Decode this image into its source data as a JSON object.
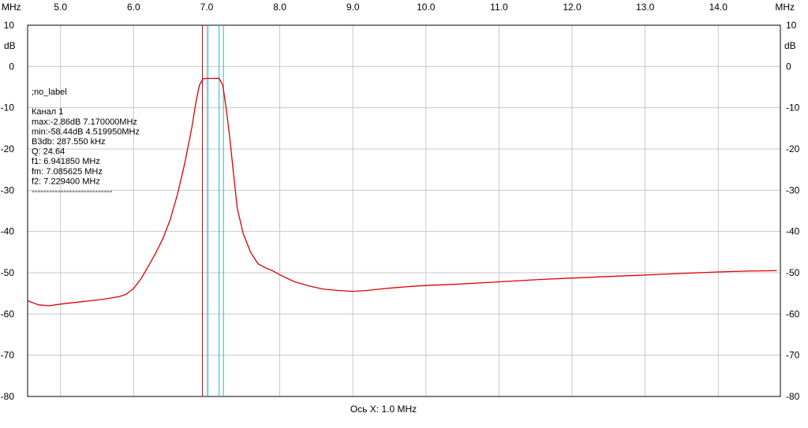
{
  "chart_data": {
    "type": "line",
    "x_unit_label": "MHz",
    "y_unit_label": "dB",
    "x_axis_caption": "Ось X: 1.0 MHz",
    "xlim": [
      4.55,
      14.85
    ],
    "ylim": [
      -80,
      10
    ],
    "x_tick_values": [
      5.0,
      6.0,
      7.0,
      8.0,
      9.0,
      10.0,
      11.0,
      12.0,
      13.0,
      14.0
    ],
    "x_tick_labels": [
      "5.0",
      "6.0",
      "7.0",
      "8.0",
      "9.0",
      "10.0",
      "11.0",
      "12.0",
      "13.0",
      "14.0"
    ],
    "y_tick_values": [
      10,
      0,
      -10,
      -20,
      -30,
      -40,
      -50,
      -60,
      -70,
      -80
    ],
    "y_tick_labels": [
      "10",
      "0",
      "-10",
      "-20",
      "-30",
      "-40",
      "-50",
      "-60",
      "-70",
      "-80"
    ],
    "grid": true,
    "series": [
      {
        "color": "#dd0000",
        "x": [
          4.55,
          4.7,
          4.85,
          5.0,
          5.2,
          5.4,
          5.6,
          5.8,
          5.9,
          6.0,
          6.1,
          6.2,
          6.3,
          6.4,
          6.5,
          6.6,
          6.7,
          6.8,
          6.85,
          6.9,
          6.95,
          7.0,
          7.1,
          7.17,
          7.22,
          7.27,
          7.32,
          7.37,
          7.42,
          7.5,
          7.6,
          7.7,
          7.8,
          7.9,
          8.0,
          8.2,
          8.4,
          8.6,
          8.8,
          9.0,
          9.2,
          9.4,
          9.6,
          9.8,
          10.0,
          10.4,
          10.8,
          11.2,
          11.6,
          12.0,
          12.4,
          12.8,
          13.2,
          13.6,
          14.0,
          14.4,
          14.8
        ],
        "y": [
          -56.8,
          -57.8,
          -58.0,
          -57.6,
          -57.2,
          -56.8,
          -56.4,
          -55.8,
          -55.2,
          -53.8,
          -51.5,
          -48.5,
          -45.3,
          -41.8,
          -37.2,
          -31.0,
          -23.5,
          -14.5,
          -9.0,
          -4.5,
          -3.0,
          -2.9,
          -2.9,
          -2.86,
          -4.5,
          -10.5,
          -18.0,
          -26.5,
          -34.5,
          -40.5,
          -45.0,
          -47.8,
          -48.8,
          -49.5,
          -50.5,
          -52.2,
          -53.2,
          -54.0,
          -54.3,
          -54.5,
          -54.3,
          -53.9,
          -53.6,
          -53.3,
          -53.1,
          -52.8,
          -52.4,
          -52.0,
          -51.6,
          -51.3,
          -51.0,
          -50.7,
          -50.4,
          -50.1,
          -49.8,
          -49.6,
          -49.5
        ]
      }
    ],
    "markers": [
      {
        "x": 6.94185,
        "color": "#8b1a1a"
      },
      {
        "x": 7.017,
        "color": "#21b9d6"
      },
      {
        "x": 7.17,
        "color": "#21b9d6"
      },
      {
        "x": 7.2294,
        "color": "#21b9d6"
      }
    ],
    "info": {
      "lines": [
        ";no_label",
        "",
        "Канал 1",
        "max:-2.86dB 7.170000MHz",
        "min:-58.44dB 4.519950MHz",
        "B3db: 287.550 kHz",
        "Q: 24.64",
        "f1: 6.941850 MHz",
        "fm: 7.085625 MHz",
        "f2: 7.229400 MHz",
        "----------------------------"
      ]
    },
    "colors": {
      "grid": "#c8c8c8",
      "axis": "#000000",
      "background": "#ffffff"
    }
  }
}
